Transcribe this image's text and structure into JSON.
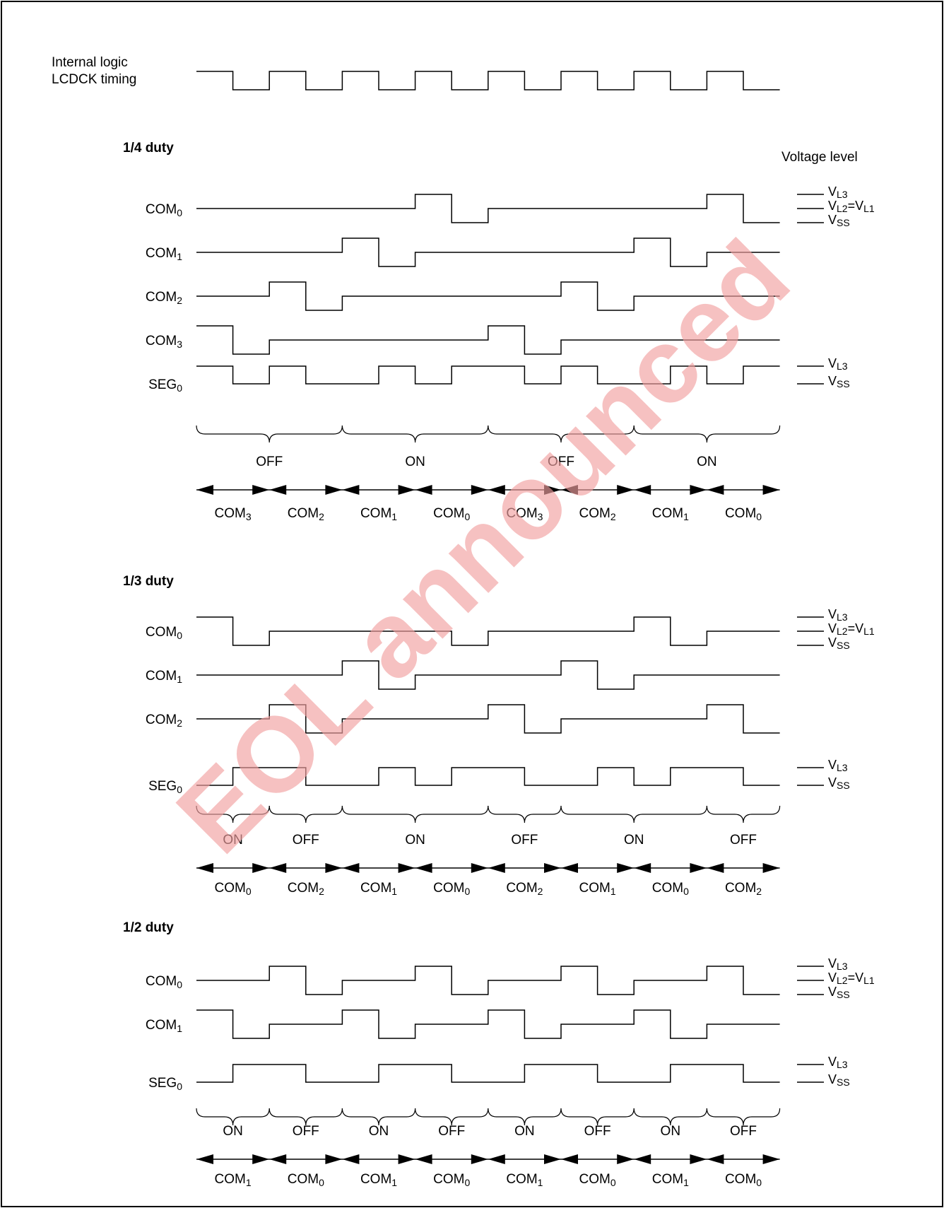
{
  "lcdck": {
    "label_line1": "Internal logic",
    "label_line2": "LCDCK timing"
  },
  "voltage_header": "Voltage level",
  "watermark": "EOL announced",
  "duty_sections": [
    {
      "title": "1/4 duty",
      "signals": [
        {
          "name": "COM",
          "sub": "0",
          "levels": [
            2,
            2,
            2,
            2,
            2,
            2,
            3,
            1,
            2,
            2,
            2,
            2,
            2,
            2,
            3,
            1
          ]
        },
        {
          "name": "COM",
          "sub": "1",
          "levels": [
            2,
            2,
            2,
            2,
            3,
            1,
            2,
            2,
            2,
            2,
            2,
            2,
            3,
            1,
            2,
            2
          ]
        },
        {
          "name": "COM",
          "sub": "2",
          "levels": [
            2,
            2,
            3,
            1,
            2,
            2,
            2,
            2,
            2,
            2,
            3,
            1,
            2,
            2,
            2,
            2
          ]
        },
        {
          "name": "COM",
          "sub": "3",
          "levels": [
            3,
            1,
            2,
            2,
            2,
            2,
            2,
            2,
            3,
            1,
            2,
            2,
            2,
            2,
            2,
            2
          ]
        },
        {
          "name": "SEG",
          "sub": "0",
          "levels": [
            3,
            1,
            3,
            1,
            1,
            3,
            1,
            3,
            3,
            1,
            3,
            1,
            1,
            3,
            1,
            3
          ]
        }
      ],
      "com_voltage_labels": [
        {
          "base": "V",
          "sub": "L3",
          "rest": "",
          "sub2": ""
        },
        {
          "base": "V",
          "sub": "L2",
          "rest": "=V",
          "sub2": "L1"
        },
        {
          "base": "V",
          "sub": "SS",
          "rest": "",
          "sub2": ""
        }
      ],
      "seg_voltage_labels": [
        {
          "base": "V",
          "sub": "L3",
          "rest": "",
          "sub2": ""
        },
        {
          "base": "V",
          "sub": "SS",
          "rest": "",
          "sub2": ""
        }
      ],
      "states": [
        {
          "label": "OFF",
          "slots": 4
        },
        {
          "label": "ON",
          "slots": 4
        },
        {
          "label": "OFF",
          "slots": 4
        },
        {
          "label": "ON",
          "slots": 4
        }
      ],
      "coms": [
        {
          "name": "COM",
          "sub": "3"
        },
        {
          "name": "COM",
          "sub": "2"
        },
        {
          "name": "COM",
          "sub": "1"
        },
        {
          "name": "COM",
          "sub": "0"
        },
        {
          "name": "COM",
          "sub": "3"
        },
        {
          "name": "COM",
          "sub": "2"
        },
        {
          "name": "COM",
          "sub": "1"
        },
        {
          "name": "COM",
          "sub": "0"
        }
      ]
    },
    {
      "title": "1/3 duty",
      "signals": [
        {
          "name": "COM",
          "sub": "0",
          "levels": [
            3,
            1,
            2,
            2,
            2,
            2,
            2,
            1,
            2,
            2,
            2,
            2,
            3,
            1,
            2,
            2
          ]
        },
        {
          "name": "COM",
          "sub": "1",
          "levels": [
            2,
            2,
            2,
            2,
            3,
            1,
            2,
            2,
            2,
            2,
            3,
            1,
            2,
            2,
            2,
            2
          ]
        },
        {
          "name": "COM",
          "sub": "2",
          "levels": [
            2,
            2,
            3,
            1,
            2,
            2,
            2,
            2,
            3,
            1,
            2,
            2,
            2,
            2,
            3,
            1
          ]
        },
        {
          "name": "SEG",
          "sub": "0",
          "levels": [
            1,
            3,
            3,
            1,
            1,
            3,
            1,
            3,
            3,
            1,
            1,
            3,
            1,
            3,
            3,
            1
          ]
        }
      ],
      "com_voltage_labels": [
        {
          "base": "V",
          "sub": "L3",
          "rest": "",
          "sub2": ""
        },
        {
          "base": "V",
          "sub": "L2",
          "rest": "=V",
          "sub2": "L1"
        },
        {
          "base": "V",
          "sub": "SS",
          "rest": "",
          "sub2": ""
        }
      ],
      "seg_voltage_labels": [
        {
          "base": "V",
          "sub": "L3",
          "rest": "",
          "sub2": ""
        },
        {
          "base": "V",
          "sub": "SS",
          "rest": "",
          "sub2": ""
        }
      ],
      "states": [
        {
          "label": "ON",
          "slots": 2
        },
        {
          "label": "OFF",
          "slots": 2
        },
        {
          "label": "ON",
          "slots": 4
        },
        {
          "label": "OFF",
          "slots": 2
        },
        {
          "label": "ON",
          "slots": 4
        },
        {
          "label": "OFF",
          "slots": 2
        }
      ],
      "coms": [
        {
          "name": "COM",
          "sub": "0"
        },
        {
          "name": "COM",
          "sub": "2"
        },
        {
          "name": "COM",
          "sub": "1"
        },
        {
          "name": "COM",
          "sub": "0"
        },
        {
          "name": "COM",
          "sub": "2"
        },
        {
          "name": "COM",
          "sub": "1"
        },
        {
          "name": "COM",
          "sub": "0"
        },
        {
          "name": "COM",
          "sub": "2"
        }
      ]
    },
    {
      "title": "1/2 duty",
      "signals": [
        {
          "name": "COM",
          "sub": "0",
          "levels": [
            2,
            2,
            3,
            1,
            2,
            2,
            3,
            1,
            2,
            2,
            3,
            1,
            2,
            2,
            3,
            1
          ]
        },
        {
          "name": "COM",
          "sub": "1",
          "levels": [
            3,
            1,
            2,
            2,
            3,
            1,
            2,
            2,
            3,
            1,
            2,
            2,
            3,
            1,
            2,
            2
          ]
        },
        {
          "name": "SEG",
          "sub": "0",
          "levels": [
            1,
            3,
            3,
            1,
            1,
            3,
            3,
            1,
            1,
            3,
            3,
            1,
            1,
            3,
            3,
            1
          ]
        }
      ],
      "com_voltage_labels": [
        {
          "base": "V",
          "sub": "L3",
          "rest": "",
          "sub2": ""
        },
        {
          "base": "V",
          "sub": "L2",
          "rest": "=V",
          "sub2": "L1"
        },
        {
          "base": "V",
          "sub": "SS",
          "rest": "",
          "sub2": ""
        }
      ],
      "seg_voltage_labels": [
        {
          "base": "V",
          "sub": "L3",
          "rest": "",
          "sub2": ""
        },
        {
          "base": "V",
          "sub": "SS",
          "rest": "",
          "sub2": ""
        }
      ],
      "states": [
        {
          "label": "ON",
          "slots": 2
        },
        {
          "label": "OFF",
          "slots": 2
        },
        {
          "label": "ON",
          "slots": 2
        },
        {
          "label": "OFF",
          "slots": 2
        },
        {
          "label": "ON",
          "slots": 2
        },
        {
          "label": "OFF",
          "slots": 2
        },
        {
          "label": "ON",
          "slots": 2
        },
        {
          "label": "OFF",
          "slots": 2
        }
      ],
      "coms": [
        {
          "name": "COM",
          "sub": "1"
        },
        {
          "name": "COM",
          "sub": "0"
        },
        {
          "name": "COM",
          "sub": "1"
        },
        {
          "name": "COM",
          "sub": "0"
        },
        {
          "name": "COM",
          "sub": "1"
        },
        {
          "name": "COM",
          "sub": "0"
        },
        {
          "name": "COM",
          "sub": "1"
        },
        {
          "name": "COM",
          "sub": "0"
        }
      ]
    }
  ]
}
